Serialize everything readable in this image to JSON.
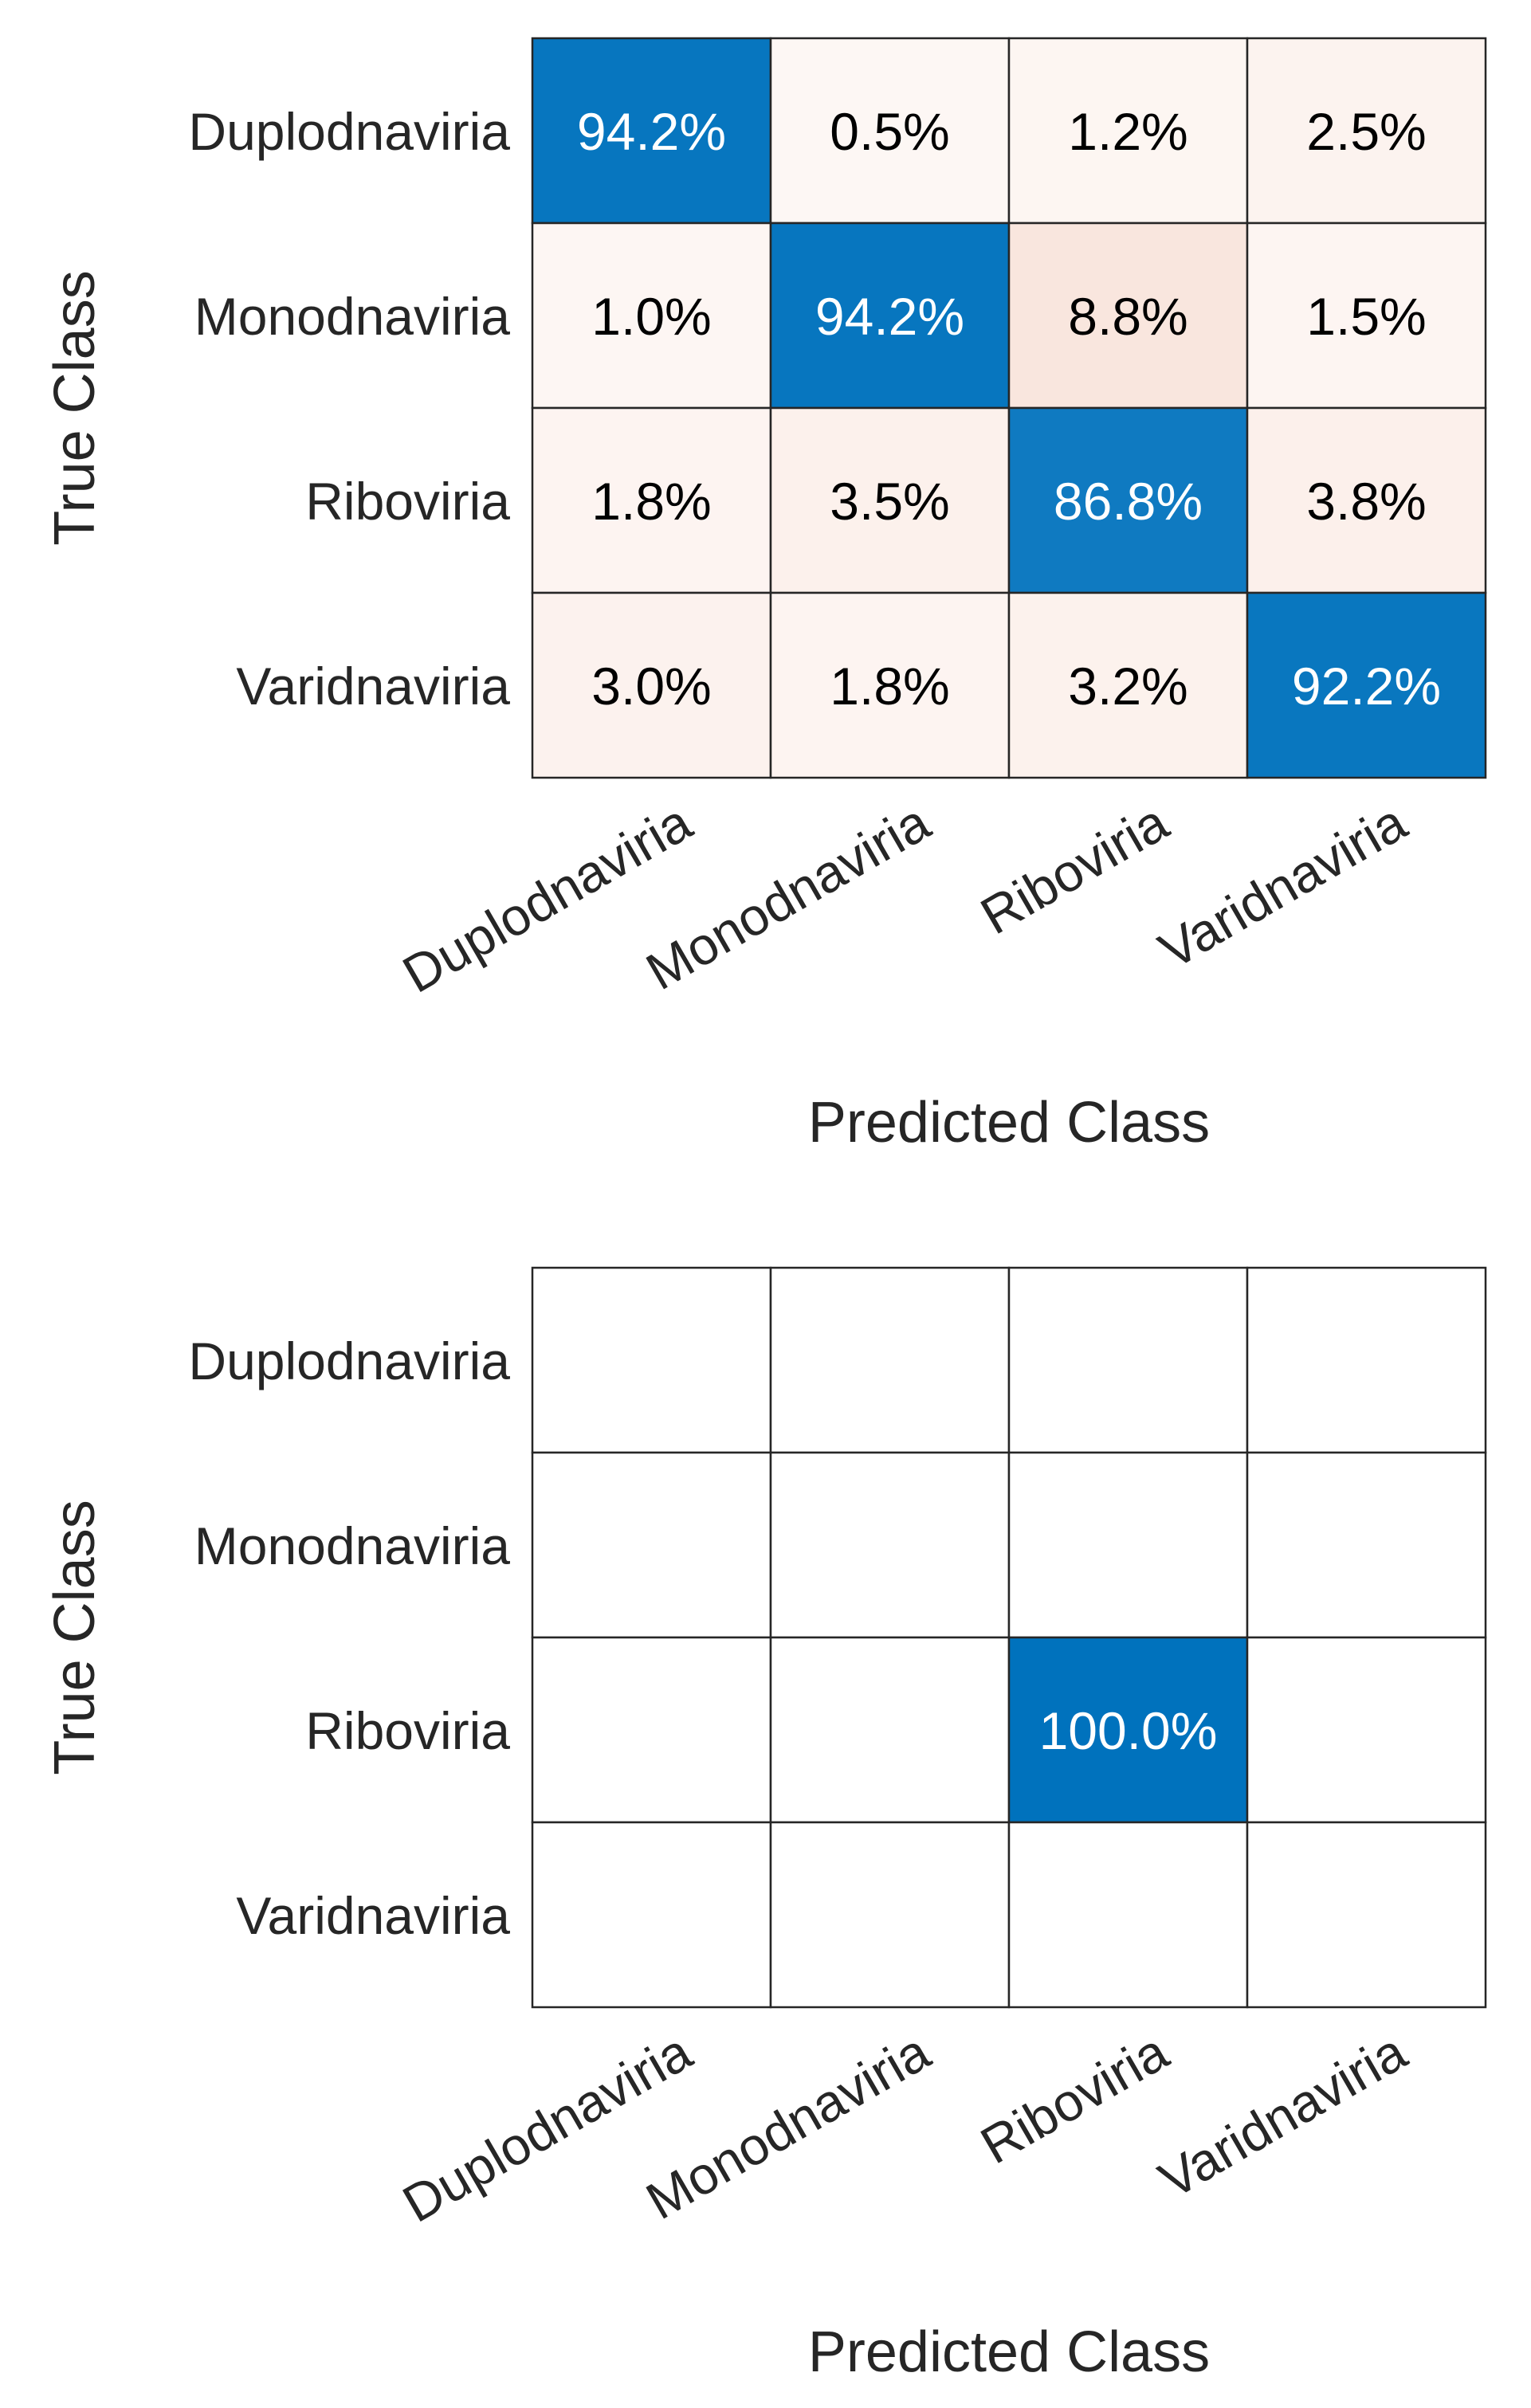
{
  "colors": {
    "high": "#0072BD",
    "low_tint": "#D95319",
    "text_light": "#FFFFFF",
    "text_dark": "#000000",
    "grid": "#262626"
  },
  "chart_data": [
    {
      "type": "heatmap",
      "title": "",
      "xlabel": "Predicted Class",
      "ylabel": "True Class",
      "x_categories": [
        "Duplodnaviria",
        "Monodnaviria",
        "Riboviria",
        "Varidnaviria"
      ],
      "y_categories": [
        "Duplodnaviria",
        "Monodnaviria",
        "Riboviria",
        "Varidnaviria"
      ],
      "values": [
        [
          94.2,
          0.5,
          1.2,
          2.5
        ],
        [
          1.0,
          94.2,
          8.8,
          1.5
        ],
        [
          1.8,
          3.5,
          86.8,
          3.8
        ],
        [
          3.0,
          1.8,
          3.2,
          92.2
        ]
      ],
      "labels": [
        [
          "94.2%",
          "0.5%",
          "1.2%",
          "2.5%"
        ],
        [
          "1.0%",
          "94.2%",
          "8.8%",
          "1.5%"
        ],
        [
          "1.8%",
          "3.5%",
          "86.8%",
          "3.8%"
        ],
        [
          "3.0%",
          "1.8%",
          "3.2%",
          "92.2%"
        ]
      ]
    },
    {
      "type": "heatmap",
      "title": "",
      "xlabel": "Predicted Class",
      "ylabel": "True Class",
      "x_categories": [
        "Duplodnaviria",
        "Monodnaviria",
        "Riboviria",
        "Varidnaviria"
      ],
      "y_categories": [
        "Duplodnaviria",
        "Monodnaviria",
        "Riboviria",
        "Varidnaviria"
      ],
      "values": [
        [
          null,
          null,
          null,
          null
        ],
        [
          null,
          null,
          null,
          null
        ],
        [
          null,
          null,
          100.0,
          null
        ],
        [
          null,
          null,
          null,
          null
        ]
      ],
      "labels": [
        [
          "",
          "",
          "",
          ""
        ],
        [
          "",
          "",
          "",
          ""
        ],
        [
          "",
          "",
          "100.0%",
          ""
        ],
        [
          "",
          "",
          "",
          ""
        ]
      ]
    }
  ]
}
